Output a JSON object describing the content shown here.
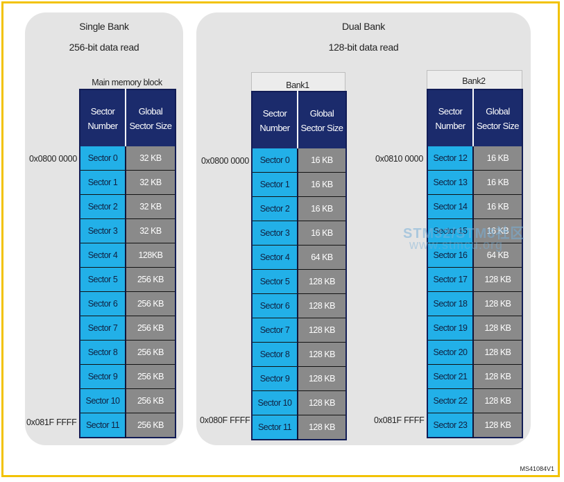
{
  "single_bank": {
    "title": "Single Bank",
    "subtitle": "256-bit data read",
    "block_label": "Main memory block",
    "header_sector": "Sector Number",
    "header_size": "Global Sector Size",
    "start_address": "0x0800 0000",
    "end_address": "0x081F FFFF",
    "rows": [
      {
        "sector": "Sector 0",
        "size": "32 KB"
      },
      {
        "sector": "Sector 1",
        "size": "32 KB"
      },
      {
        "sector": "Sector 2",
        "size": "32 KB"
      },
      {
        "sector": "Sector 3",
        "size": "32 KB"
      },
      {
        "sector": "Sector 4",
        "size": "128KB"
      },
      {
        "sector": "Sector 5",
        "size": "256 KB"
      },
      {
        "sector": "Sector 6",
        "size": "256 KB"
      },
      {
        "sector": "Sector 7",
        "size": "256 KB"
      },
      {
        "sector": "Sector 8",
        "size": "256 KB"
      },
      {
        "sector": "Sector 9",
        "size": "256 KB"
      },
      {
        "sector": "Sector 10",
        "size": "256 KB"
      },
      {
        "sector": "Sector 11",
        "size": "256 KB"
      }
    ]
  },
  "dual_bank": {
    "title": "Dual Bank",
    "subtitle": "128-bit data read",
    "bank1": {
      "label": "Bank1",
      "header_sector": "Sector Number",
      "header_size": "Global Sector Size",
      "start_address": "0x0800 0000",
      "end_address": "0x080F FFFF",
      "rows": [
        {
          "sector": "Sector 0",
          "size": "16 KB"
        },
        {
          "sector": "Sector 1",
          "size": "16 KB"
        },
        {
          "sector": "Sector 2",
          "size": "16 KB"
        },
        {
          "sector": "Sector 3",
          "size": "16 KB"
        },
        {
          "sector": "Sector 4",
          "size": "64 KB"
        },
        {
          "sector": "Sector 5",
          "size": "128 KB"
        },
        {
          "sector": "Sector 6",
          "size": "128 KB"
        },
        {
          "sector": "Sector 7",
          "size": "128 KB"
        },
        {
          "sector": "Sector 8",
          "size": "128 KB"
        },
        {
          "sector": "Sector 9",
          "size": "128 KB"
        },
        {
          "sector": "Sector 10",
          "size": "128 KB"
        },
        {
          "sector": "Sector 11",
          "size": "128 KB"
        }
      ]
    },
    "bank2": {
      "label": "Bank2",
      "header_sector": "Sector Number",
      "header_size": "Global Sector Size",
      "start_address": "0x0810 0000",
      "end_address": "0x081F FFFF",
      "rows": [
        {
          "sector": "Sector 12",
          "size": "16 KB"
        },
        {
          "sector": "Sector 13",
          "size": "16 KB"
        },
        {
          "sector": "Sector 14",
          "size": "16 KB"
        },
        {
          "sector": "Sector 15",
          "size": "16 KB"
        },
        {
          "sector": "Sector 16",
          "size": "64 KB"
        },
        {
          "sector": "Sector 17",
          "size": "128 KB"
        },
        {
          "sector": "Sector 18",
          "size": "128 KB"
        },
        {
          "sector": "Sector 19",
          "size": "128 KB"
        },
        {
          "sector": "Sector 20",
          "size": "128 KB"
        },
        {
          "sector": "Sector 21",
          "size": "128 KB"
        },
        {
          "sector": "Sector 22",
          "size": "128 KB"
        },
        {
          "sector": "Sector 23",
          "size": "128 KB"
        }
      ]
    }
  },
  "watermark": {
    "line1": "STM32/STM8社区",
    "line2": "www.stmcu.org"
  },
  "figure_code": "MS41084V1",
  "colors": {
    "frame": "#f2c200",
    "panel": "#e4e4e4",
    "header": "#1b2b6c",
    "sector_cell": "#22b0e8",
    "size_cell": "#8a8a8a"
  }
}
